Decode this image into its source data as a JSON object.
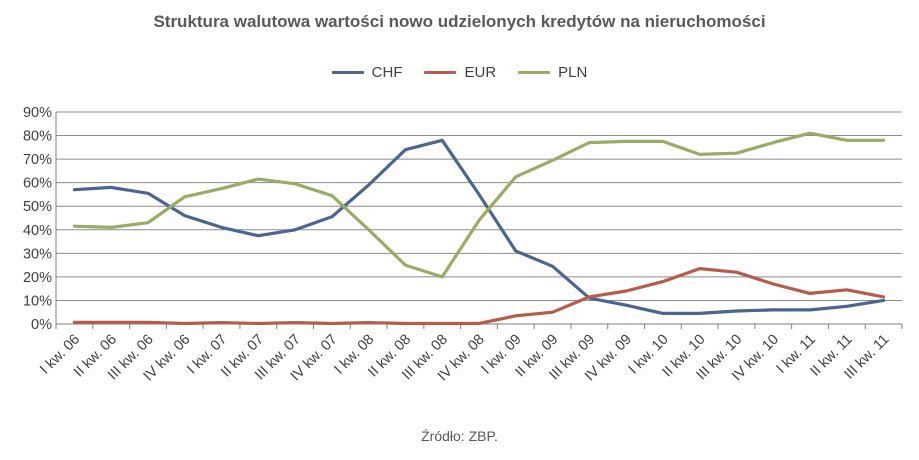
{
  "chart_data": {
    "type": "line",
    "title": "Struktura walutowa wartości nowo udzielonych kredytów na nieruchomości",
    "source": "Źródło: ZBP.",
    "categories": [
      "I kw. 06",
      "II kw. 06",
      "III kw. 06",
      "IV kw. 06",
      "I kw. 07",
      "II kw. 07",
      "III kw. 07",
      "IV kw. 07",
      "I kw. 08",
      "II kw. 08",
      "III kw. 08",
      "IV kw. 08",
      "I kw. 09",
      "II kw. 09",
      "III kw. 09",
      "IV kw. 09",
      "I kw. 10",
      "II kw. 10",
      "III kw. 10",
      "IV kw. 10",
      "I kw. 11",
      "II kw. 11",
      "III kw. 11"
    ],
    "series": [
      {
        "name": "CHF",
        "color": "#4a6690",
        "values": [
          57,
          58,
          55.5,
          46,
          41,
          37.5,
          40,
          45.5,
          59,
          74,
          78,
          55,
          31,
          24.5,
          11,
          8,
          4.5,
          4.5,
          5.5,
          6,
          6,
          7.5,
          10
        ]
      },
      {
        "name": "EUR",
        "color": "#b65c4c",
        "values": [
          0.7,
          0.7,
          0.7,
          0.2,
          0.6,
          0.2,
          0.6,
          0.2,
          0.6,
          0.2,
          0.2,
          0.2,
          3.5,
          5,
          11.5,
          14,
          18,
          23.5,
          22,
          17,
          13,
          14.5,
          11.5
        ]
      },
      {
        "name": "PLN",
        "color": "#9aab65",
        "values": [
          41.5,
          41,
          43,
          54,
          57.5,
          61.5,
          59.5,
          54.5,
          40,
          25,
          20,
          44,
          62.5,
          69.5,
          77,
          77.5,
          77.5,
          72,
          72.5,
          77,
          81,
          78,
          78
        ]
      }
    ],
    "yticks": [
      "0%",
      "10%",
      "20%",
      "30%",
      "40%",
      "50%",
      "60%",
      "70%",
      "80%",
      "90%"
    ],
    "ylim": [
      0,
      90
    ],
    "grid": true,
    "legend_position": "top-center"
  }
}
